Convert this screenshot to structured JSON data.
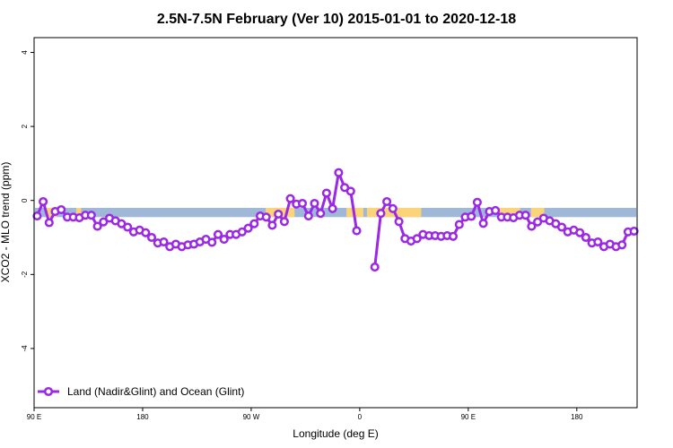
{
  "chart_data": {
    "type": "line",
    "title": "2.5N-7.5N February (Ver 10)   2015-01-01 to 2020-12-18",
    "xlabel": "Longitude (deg E)",
    "ylabel": "XCO2 - MLO trend (ppm)",
    "xlim": [
      90,
      590
    ],
    "ylim": [
      -5.6,
      4.4
    ],
    "x_axis_note": "longitude unwrapped eastward from 90 E through 180 to 90 E of the next revolution (x value 450 = 90 E again)",
    "x_ticks": [
      {
        "value": 90,
        "label": "90 E"
      },
      {
        "value": 180,
        "label": "180"
      },
      {
        "value": 270,
        "label": "90 W"
      },
      {
        "value": 360,
        "label": "0"
      },
      {
        "value": 450,
        "label": "90 E"
      },
      {
        "value": 540,
        "label": "180"
      }
    ],
    "y_ticks": [
      {
        "value": -4,
        "label": "-4"
      },
      {
        "value": -2,
        "label": "-2"
      },
      {
        "value": 0,
        "label": "0"
      },
      {
        "value": 2,
        "label": "2"
      },
      {
        "value": 4,
        "label": "4"
      }
    ],
    "grid": false,
    "legend_position": "bottom-left",
    "background_band": {
      "y_range": [
        -0.45,
        -0.2
      ],
      "ocean_color": "#a0b8d8",
      "land_color": "#fbd47a",
      "land_segments": [
        [
          100,
          109
        ],
        [
          125,
          129
        ],
        [
          282,
          306
        ],
        [
          349,
          363
        ],
        [
          366,
          411
        ],
        [
          475,
          493
        ],
        [
          502,
          513
        ]
      ]
    },
    "series": [
      {
        "name": "Land (Nadir&Glint) and Ocean (Glint)",
        "color": "#9a28e4",
        "segments": [
          {
            "x": [
              92.5,
              97.5,
              102.5,
              107.5,
              112.5,
              117.5,
              122.5,
              127.5,
              132.5,
              137.5,
              142.5,
              147.5,
              152.5,
              157.5,
              162.5,
              167.5,
              172.5,
              177.5,
              182.5,
              187.5,
              192.5,
              197.5,
              202.5,
              207.5,
              212.5,
              217.5,
              222.5,
              227.5,
              232.5,
              237.5,
              242.5,
              247.5,
              252.5,
              257.5,
              262.5,
              267.5,
              272.5,
              277.5,
              282.5,
              287.5,
              292.5,
              297.5,
              302.5,
              307.5,
              312.5,
              317.5,
              322.5,
              327.5,
              332.5,
              337.5,
              342.5,
              347.5,
              352.5,
              357.5
            ],
            "y": [
              -0.42,
              -0.03,
              -0.6,
              -0.3,
              -0.25,
              -0.45,
              -0.45,
              -0.47,
              -0.4,
              -0.4,
              -0.7,
              -0.58,
              -0.48,
              -0.55,
              -0.63,
              -0.72,
              -0.85,
              -0.8,
              -0.87,
              -1.0,
              -1.15,
              -1.12,
              -1.25,
              -1.18,
              -1.25,
              -1.2,
              -1.18,
              -1.12,
              -1.05,
              -1.13,
              -0.92,
              -1.05,
              -0.92,
              -0.92,
              -0.85,
              -0.75,
              -0.63,
              -0.42,
              -0.45,
              -0.67,
              -0.37,
              -0.57,
              0.05,
              -0.1,
              -0.08,
              -0.42,
              -0.08,
              -0.35,
              0.2,
              -0.22,
              0.75,
              0.35,
              0.25,
              -0.82
            ]
          },
          {
            "x": [
              372.5,
              377.5,
              382.5,
              387.5,
              392.5,
              397.5,
              402.5,
              407.5,
              412.5,
              417.5,
              422.5,
              427.5,
              432.5,
              437.5,
              442.5,
              447.5,
              452.5,
              457.5,
              462.5,
              467.5,
              472.5,
              477.5,
              482.5,
              487.5,
              492.5,
              497.5,
              502.5,
              507.5,
              512.5,
              517.5,
              522.5,
              527.5,
              532.5,
              537.5,
              542.5,
              547.5,
              552.5,
              557.5,
              562.5,
              567.5,
              572.5,
              577.5,
              582.5,
              587.5
            ],
            "y": [
              -1.8,
              -0.35,
              -0.03,
              -0.22,
              -0.57,
              -1.03,
              -1.1,
              -1.03,
              -0.92,
              -0.95,
              -0.95,
              -0.97,
              -0.95,
              -0.97,
              -0.65,
              -0.45,
              -0.43,
              -0.05,
              -0.62,
              -0.3,
              -0.27,
              -0.45,
              -0.45,
              -0.47,
              -0.4,
              -0.4,
              -0.7,
              -0.58,
              -0.48,
              -0.55,
              -0.63,
              -0.72,
              -0.85,
              -0.8,
              -0.87,
              -1.0,
              -1.15,
              -1.12,
              -1.25,
              -1.18,
              -1.25,
              -1.2,
              -0.85,
              -0.83
            ]
          }
        ]
      }
    ]
  }
}
